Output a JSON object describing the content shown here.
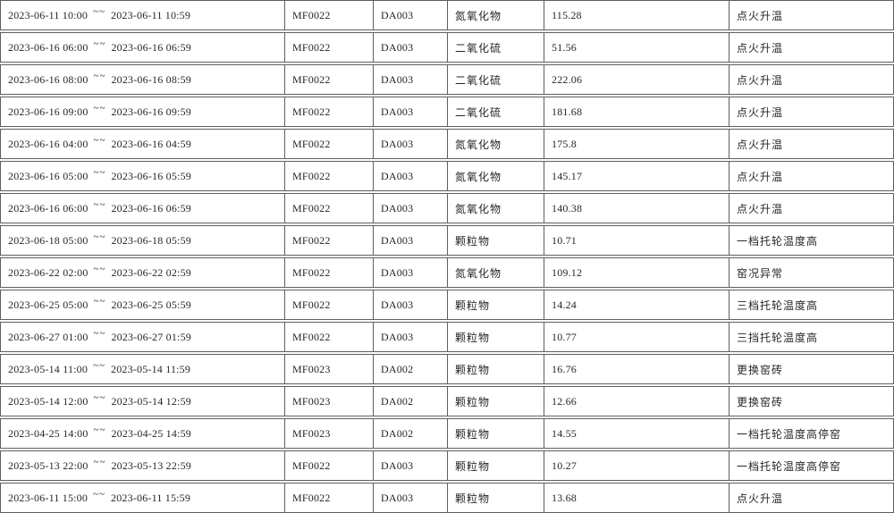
{
  "colors": {
    "border": "#5f5f5f",
    "text": "#262626",
    "background": "#ffffff"
  },
  "table": {
    "tilde_separator": "~~",
    "rows": [
      {
        "time_start": "2023-06-11 10:00",
        "time_end": "2023-06-11 10:59",
        "station": "MF0022",
        "device": "DA003",
        "pollutant": "氮氧化物",
        "value": "115.28",
        "status": "点火升温"
      },
      {
        "time_start": "2023-06-16 06:00",
        "time_end": "2023-06-16 06:59",
        "station": "MF0022",
        "device": "DA003",
        "pollutant": "二氧化硫",
        "value": "51.56",
        "status": "点火升温"
      },
      {
        "time_start": "2023-06-16 08:00",
        "time_end": "2023-06-16 08:59",
        "station": "MF0022",
        "device": "DA003",
        "pollutant": "二氧化硫",
        "value": "222.06",
        "status": "点火升温"
      },
      {
        "time_start": "2023-06-16 09:00",
        "time_end": "2023-06-16 09:59",
        "station": "MF0022",
        "device": "DA003",
        "pollutant": "二氧化硫",
        "value": "181.68",
        "status": "点火升温"
      },
      {
        "time_start": "2023-06-16 04:00",
        "time_end": "2023-06-16 04:59",
        "station": "MF0022",
        "device": "DA003",
        "pollutant": "氮氧化物",
        "value": "175.8",
        "status": "点火升温"
      },
      {
        "time_start": "2023-06-16 05:00",
        "time_end": "2023-06-16 05:59",
        "station": "MF0022",
        "device": "DA003",
        "pollutant": "氮氧化物",
        "value": "145.17",
        "status": "点火升温"
      },
      {
        "time_start": "2023-06-16 06:00",
        "time_end": "2023-06-16 06:59",
        "station": "MF0022",
        "device": "DA003",
        "pollutant": "氮氧化物",
        "value": "140.38",
        "status": "点火升温"
      },
      {
        "time_start": "2023-06-18 05:00",
        "time_end": "2023-06-18 05:59",
        "station": "MF0022",
        "device": "DA003",
        "pollutant": "颗粒物",
        "value": "10.71",
        "status": "一档托轮温度高"
      },
      {
        "time_start": "2023-06-22 02:00",
        "time_end": "2023-06-22 02:59",
        "station": "MF0022",
        "device": "DA003",
        "pollutant": "氮氧化物",
        "value": "109.12",
        "status": "窑况异常"
      },
      {
        "time_start": "2023-06-25 05:00",
        "time_end": "2023-06-25 05:59",
        "station": "MF0022",
        "device": "DA003",
        "pollutant": "颗粒物",
        "value": "14.24",
        "status": "三档托轮温度高"
      },
      {
        "time_start": "2023-06-27 01:00",
        "time_end": "2023-06-27 01:59",
        "station": "MF0022",
        "device": "DA003",
        "pollutant": "颗粒物",
        "value": "10.77",
        "status": "三挡托轮温度高"
      },
      {
        "time_start": "2023-05-14 11:00",
        "time_end": "2023-05-14 11:59",
        "station": "MF0023",
        "device": "DA002",
        "pollutant": "颗粒物",
        "value": "16.76",
        "status": "更换窑砖"
      },
      {
        "time_start": "2023-05-14 12:00",
        "time_end": "2023-05-14 12:59",
        "station": "MF0023",
        "device": "DA002",
        "pollutant": "颗粒物",
        "value": "12.66",
        "status": "更换窑砖"
      },
      {
        "time_start": "2023-04-25 14:00",
        "time_end": "2023-04-25 14:59",
        "station": "MF0023",
        "device": "DA002",
        "pollutant": "颗粒物",
        "value": "14.55",
        "status": "一档托轮温度高停窑"
      },
      {
        "time_start": "2023-05-13 22:00",
        "time_end": "2023-05-13 22:59",
        "station": "MF0022",
        "device": "DA003",
        "pollutant": "颗粒物",
        "value": "10.27",
        "status": "一档托轮温度高停窑"
      },
      {
        "time_start": "2023-06-11 15:00",
        "time_end": "2023-06-11 15:59",
        "station": "MF0022",
        "device": "DA003",
        "pollutant": "颗粒物",
        "value": "13.68",
        "status": "点火升温"
      }
    ]
  }
}
